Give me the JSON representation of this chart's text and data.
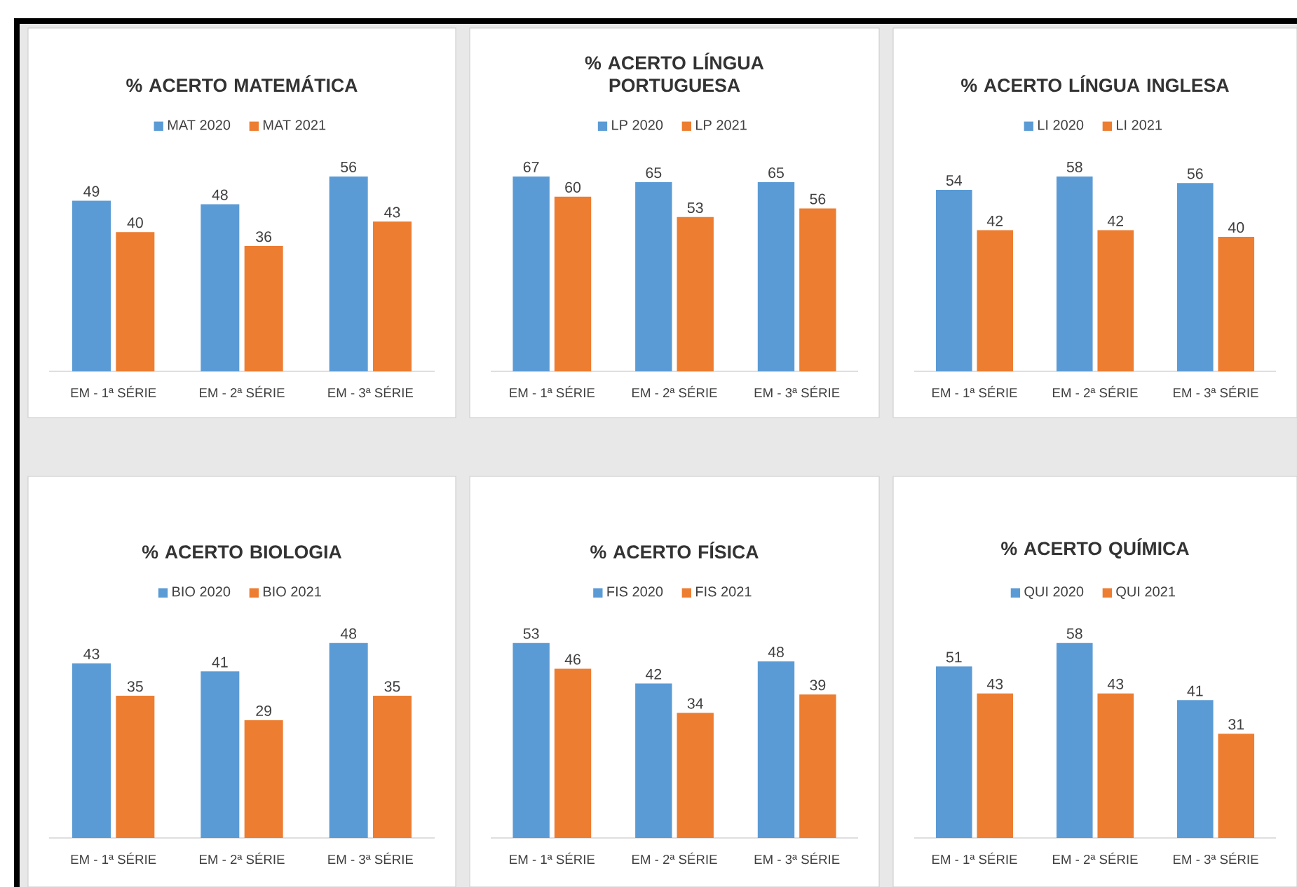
{
  "chart_data": [
    {
      "type": "bar",
      "title": "% ACERTO MATEMÁTICA",
      "categories": [
        "EM - 1ª SÉRIE",
        "EM - 2ª SÉRIE",
        "EM - 3ª SÉRIE"
      ],
      "series": [
        {
          "name": "MAT 2020",
          "color": "#5b9bd5",
          "values": [
            49,
            48,
            56
          ]
        },
        {
          "name": "MAT 2021",
          "color": "#ed7d31",
          "values": [
            40,
            36,
            43
          ]
        }
      ],
      "data_labels": true,
      "legend": "top"
    },
    {
      "type": "bar",
      "title": "% ACERTO LÍNGUA PORTUGUESA",
      "categories": [
        "EM - 1ª SÉRIE",
        "EM - 2ª SÉRIE",
        "EM - 3ª SÉRIE"
      ],
      "series": [
        {
          "name": "LP 2020",
          "color": "#5b9bd5",
          "values": [
            67,
            65,
            65
          ]
        },
        {
          "name": "LP 2021",
          "color": "#ed7d31",
          "values": [
            60,
            53,
            56
          ]
        }
      ],
      "data_labels": true,
      "legend": "top"
    },
    {
      "type": "bar",
      "title": "% ACERTO LÍNGUA INGLESA",
      "categories": [
        "EM - 1ª SÉRIE",
        "EM - 2ª SÉRIE",
        "EM - 3ª SÉRIE"
      ],
      "series": [
        {
          "name": "LI 2020",
          "color": "#5b9bd5",
          "values": [
            54,
            58,
            56
          ]
        },
        {
          "name": "LI 2021",
          "color": "#ed7d31",
          "values": [
            42,
            42,
            40
          ]
        }
      ],
      "data_labels": true,
      "legend": "top"
    },
    {
      "type": "bar",
      "title": "% ACERTO BIOLOGIA",
      "categories": [
        "EM - 1ª SÉRIE",
        "EM - 2ª SÉRIE",
        "EM - 3ª SÉRIE"
      ],
      "series": [
        {
          "name": "BIO 2020",
          "color": "#5b9bd5",
          "values": [
            43,
            41,
            48
          ]
        },
        {
          "name": "BIO 2021",
          "color": "#ed7d31",
          "values": [
            35,
            29,
            35
          ]
        }
      ],
      "data_labels": true,
      "legend": "top"
    },
    {
      "type": "bar",
      "title": "% ACERTO FÍSICA",
      "categories": [
        "EM - 1ª SÉRIE",
        "EM - 2ª SÉRIE",
        "EM - 3ª SÉRIE"
      ],
      "series": [
        {
          "name": "FIS 2020",
          "color": "#5b9bd5",
          "values": [
            53,
            42,
            48
          ]
        },
        {
          "name": "FIS 2021",
          "color": "#ed7d31",
          "values": [
            46,
            34,
            39
          ]
        }
      ],
      "data_labels": true,
      "legend": "top"
    },
    {
      "type": "bar",
      "title": "% ACERTO QUÍMICA",
      "categories": [
        "EM - 1ª SÉRIE",
        "EM - 2ª SÉRIE",
        "EM - 3ª SÉRIE"
      ],
      "series": [
        {
          "name": "QUI 2020",
          "color": "#5b9bd5",
          "values": [
            51,
            58,
            41
          ]
        },
        {
          "name": "QUI 2021",
          "color": "#ed7d31",
          "values": [
            43,
            43,
            31
          ]
        }
      ],
      "data_labels": true,
      "legend": "top"
    }
  ]
}
